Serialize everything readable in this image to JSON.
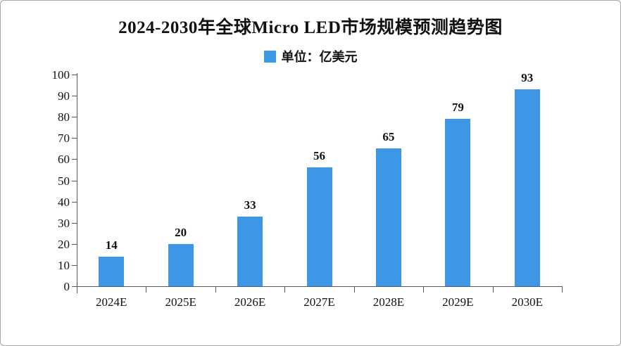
{
  "title": "2024-2030年全球Micro LED市场规模预测趋势图",
  "legend": {
    "label": "单位：亿美元"
  },
  "colors": {
    "bar": "#3E97E6",
    "axis": "#5a5a5a",
    "text": "#111111",
    "background": "#ffffff",
    "border": "#a9a9a9"
  },
  "chart_data": {
    "type": "bar",
    "title": "2024-2030年全球Micro LED市场规模预测趋势图",
    "categories": [
      "2024E",
      "2025E",
      "2026E",
      "2027E",
      "2028E",
      "2029E",
      "2030E"
    ],
    "values": [
      14,
      20,
      33,
      56,
      65,
      79,
      93
    ],
    "xlabel": "",
    "ylabel": "",
    "unit": "亿美元",
    "ylim": [
      0,
      100
    ],
    "yticks": [
      0,
      10,
      20,
      30,
      40,
      50,
      60,
      70,
      80,
      90,
      100
    ],
    "grid": false,
    "legend_position": "top",
    "legend_entries": [
      "单位：亿美元"
    ]
  }
}
